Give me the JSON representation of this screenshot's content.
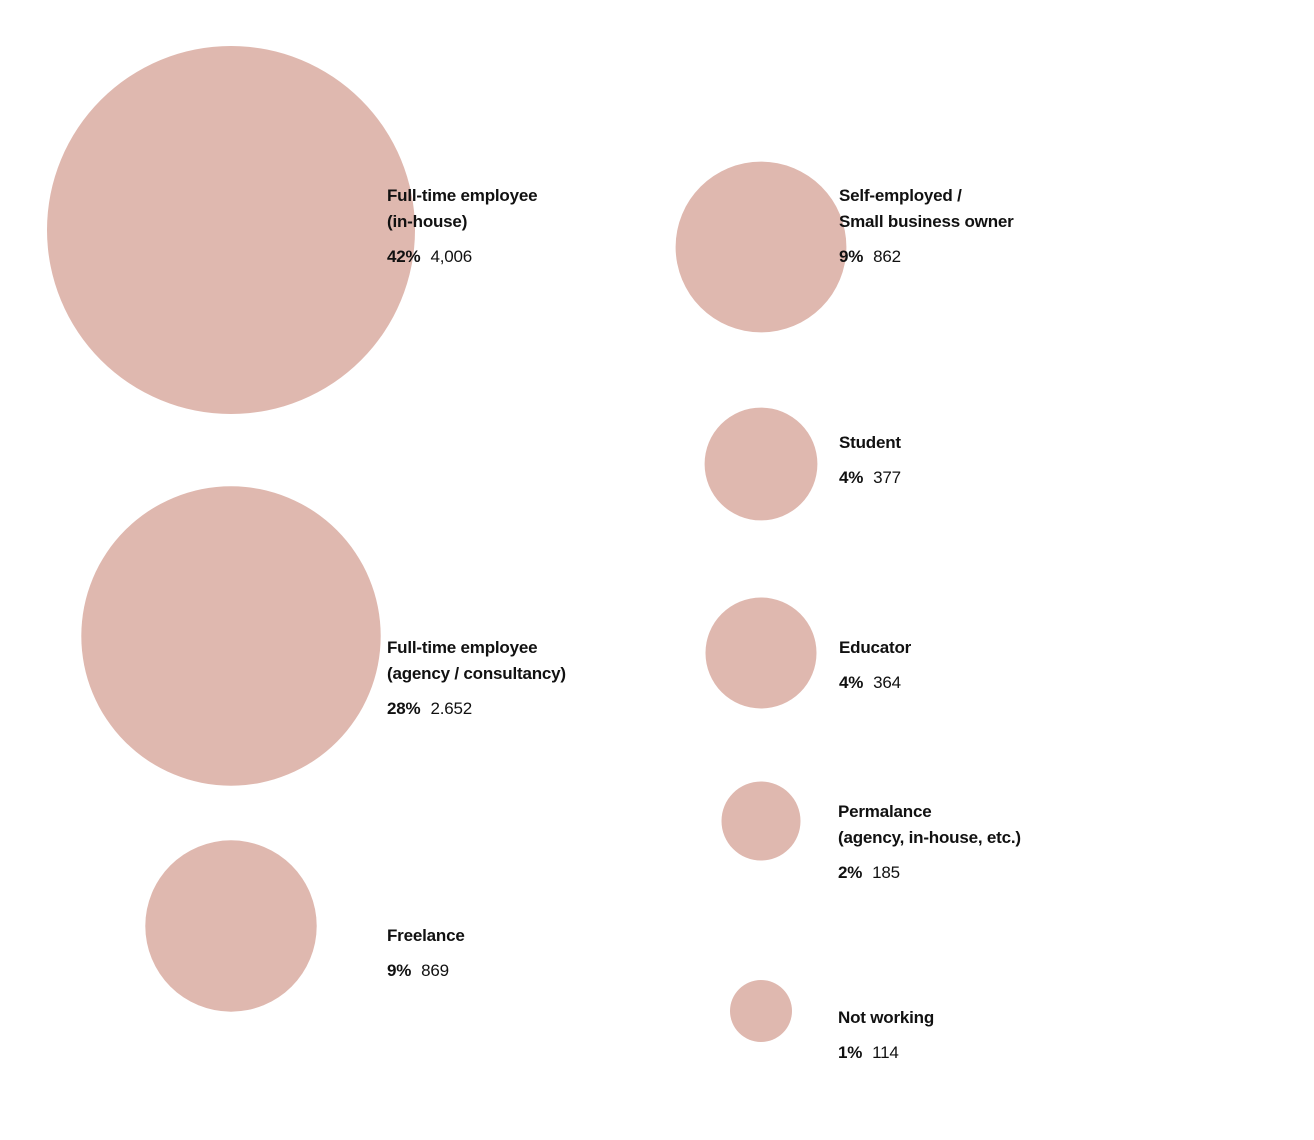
{
  "chart_data": {
    "type": "bubble",
    "bubble_color": "#dfb8af",
    "items": [
      {
        "label": "Full-time employee\n(in-house)",
        "percent": "42%",
        "count": "4,006",
        "value": 4006
      },
      {
        "label": "Full-time employee\n(agency / consultancy)",
        "percent": "28%",
        "count": "2.652",
        "value": 2652
      },
      {
        "label": "Freelance",
        "percent": "9%",
        "count": "869",
        "value": 869
      },
      {
        "label": "Self-employed /\nSmall business owner",
        "percent": "9%",
        "count": "862",
        "value": 862
      },
      {
        "label": "Student",
        "percent": "4%",
        "count": "377",
        "value": 377
      },
      {
        "label": "Educator",
        "percent": "4%",
        "count": "364",
        "value": 364
      },
      {
        "label": "Permalance\n(agency, in-house, etc.)",
        "percent": "2%",
        "count": "185",
        "value": 185
      },
      {
        "label": "Not working",
        "percent": "1%",
        "count": "114",
        "value": 114
      }
    ]
  }
}
